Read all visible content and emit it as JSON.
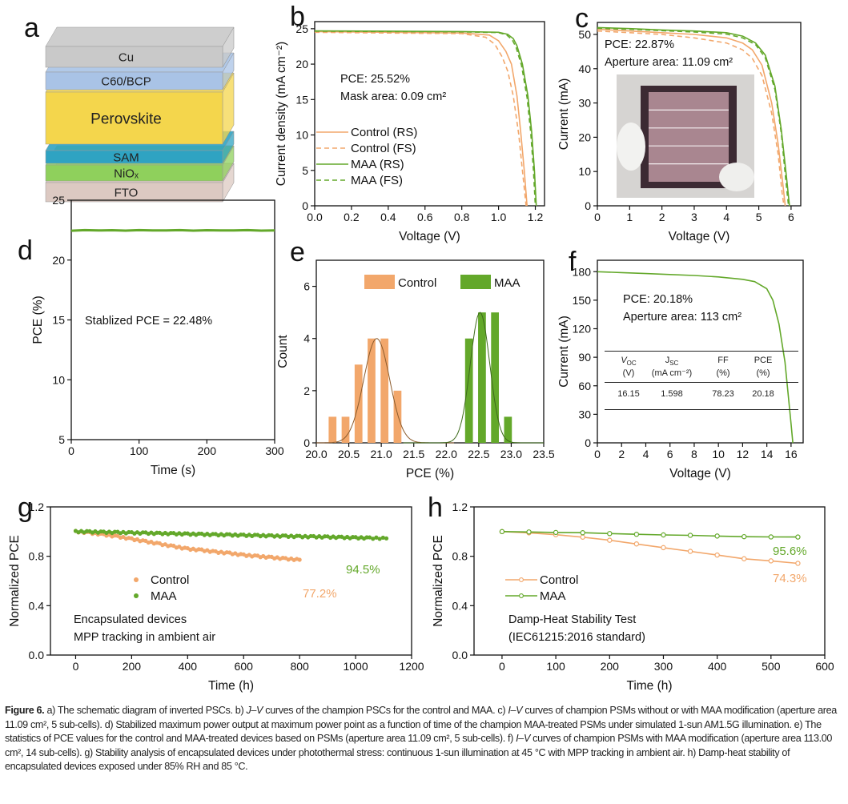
{
  "colors": {
    "control": "#f2a76b",
    "maa": "#63a82a",
    "control_fit": "#8b5a2b",
    "maa_fit": "#3d6a1b",
    "axis": "#111111"
  },
  "panel_labels": [
    "a",
    "b",
    "c",
    "d",
    "e",
    "f",
    "g",
    "h"
  ],
  "schematic": {
    "layers": [
      {
        "label": "FTO",
        "color": "#dcc9c2"
      },
      {
        "label": "NiOₓ",
        "color": "#8fd05c"
      },
      {
        "label": "SAM",
        "color": "#2fa3c2"
      },
      {
        "label": "Perovskite",
        "color": "#f4d64c"
      },
      {
        "label": "C60/BCP",
        "color": "#a9c3e6"
      },
      {
        "label": "Cu",
        "color": "#c9c9c9"
      }
    ]
  },
  "chart_data": [
    {
      "panel": "b",
      "type": "line",
      "xlim": [
        0,
        1.25
      ],
      "ylim": [
        0,
        26
      ],
      "xticks": [
        0,
        0.2,
        0.4,
        0.6,
        0.8,
        1.0,
        1.2
      ],
      "xtick_labels": [
        "0.0",
        "0.2",
        "0.4",
        "0.6",
        "0.8",
        "1.0",
        "1.2"
      ],
      "yticks": [
        0,
        5,
        10,
        15,
        20,
        25
      ],
      "ytick_labels": [
        "0",
        "5",
        "10",
        "15",
        "20",
        "25"
      ],
      "xlabel": "Voltage (V)",
      "ylabel": "Current density (mA cm⁻²)",
      "annotations": [
        "PCE: 25.52%",
        "Mask area: 0.09 cm²"
      ],
      "legend": "center-left",
      "series": [
        {
          "name": "Control (RS)",
          "color": "control",
          "dash": false,
          "x": [
            0,
            0.4,
            0.8,
            0.95,
            1.0,
            1.04,
            1.07,
            1.1,
            1.12,
            1.14,
            1.155
          ],
          "y": [
            24.6,
            24.5,
            24.4,
            24.1,
            23.3,
            21.8,
            20,
            15.5,
            10.5,
            5,
            0
          ]
        },
        {
          "name": "Control (FS)",
          "color": "control",
          "dash": true,
          "x": [
            0,
            0.4,
            0.8,
            0.93,
            0.98,
            1.02,
            1.05,
            1.08,
            1.11,
            1.13,
            1.15
          ],
          "y": [
            24.5,
            24.4,
            24.3,
            23.8,
            22.8,
            21,
            19,
            15.5,
            10,
            5,
            0
          ]
        },
        {
          "name": "MAA (RS)",
          "color": "maa",
          "dash": false,
          "x": [
            0,
            0.4,
            0.8,
            1.0,
            1.05,
            1.08,
            1.1,
            1.13,
            1.16,
            1.18,
            1.195,
            1.205
          ],
          "y": [
            24.7,
            24.65,
            24.6,
            24.5,
            24.2,
            23.6,
            22.6,
            20,
            15.5,
            10.5,
            5,
            0
          ]
        },
        {
          "name": "MAA (FS)",
          "color": "maa",
          "dash": true,
          "x": [
            0,
            0.4,
            0.8,
            1.0,
            1.045,
            1.075,
            1.095,
            1.125,
            1.155,
            1.175,
            1.19,
            1.2
          ],
          "y": [
            24.65,
            24.6,
            24.55,
            24.45,
            24.1,
            23.4,
            22.4,
            19.8,
            15.3,
            10.3,
            5,
            0
          ]
        }
      ]
    },
    {
      "panel": "c",
      "type": "line",
      "xlim": [
        0,
        6.3
      ],
      "ylim": [
        0,
        53.5
      ],
      "xticks": [
        0,
        1,
        2,
        3,
        4,
        5,
        6
      ],
      "xtick_labels": [
        "0",
        "1",
        "2",
        "3",
        "4",
        "5",
        "6"
      ],
      "yticks": [
        0,
        10,
        20,
        30,
        40,
        50
      ],
      "ytick_labels": [
        "0",
        "10",
        "20",
        "30",
        "40",
        "50"
      ],
      "xlabel": "Voltage (V)",
      "ylabel": "Current (mA)",
      "annotations": [
        "PCE: 22.87%",
        "Aperture area: 11.09 cm²"
      ],
      "series": [
        {
          "color": "control",
          "dash": false,
          "x": [
            0,
            1,
            2,
            3,
            4,
            4.5,
            4.8,
            5.1,
            5.4,
            5.6,
            5.75,
            5.82
          ],
          "y": [
            51.5,
            51,
            50.5,
            50,
            49,
            47.5,
            45.5,
            41,
            30,
            18,
            6,
            0
          ]
        },
        {
          "color": "control",
          "dash": true,
          "x": [
            0,
            1,
            2,
            3,
            4,
            4.5,
            4.8,
            5.1,
            5.4,
            5.6,
            5.72,
            5.78
          ],
          "y": [
            51,
            50.5,
            50,
            49,
            47.5,
            45.5,
            43,
            38,
            27,
            15,
            4,
            0
          ]
        },
        {
          "color": "maa",
          "dash": false,
          "x": [
            0,
            1,
            2,
            3,
            4,
            4.5,
            4.9,
            5.2,
            5.5,
            5.7,
            5.85,
            5.95
          ],
          "y": [
            52,
            51.7,
            51.3,
            51,
            50.5,
            49.5,
            47.5,
            44,
            35,
            22,
            9,
            0
          ]
        },
        {
          "color": "maa",
          "dash": true,
          "x": [
            0,
            1,
            2,
            3,
            4,
            4.5,
            4.9,
            5.2,
            5.5,
            5.7,
            5.83,
            5.92
          ],
          "y": [
            51.8,
            51.5,
            51.1,
            50.7,
            50.1,
            49,
            47,
            43.2,
            34,
            21,
            8,
            0
          ]
        }
      ]
    },
    {
      "panel": "d",
      "type": "line",
      "xlim": [
        0,
        300
      ],
      "ylim": [
        5,
        25
      ],
      "xticks": [
        0,
        100,
        200,
        300
      ],
      "xtick_labels": [
        "0",
        "100",
        "200",
        "300"
      ],
      "yticks": [
        5,
        10,
        15,
        20,
        25
      ],
      "ytick_labels": [
        "5",
        "10",
        "15",
        "20",
        "25"
      ],
      "xlabel": "Time (s)",
      "ylabel": "PCE (%)",
      "annotations": [
        "Stablized PCE = 22.48%"
      ],
      "series": [
        {
          "color": "maa",
          "dash": false,
          "markers": true,
          "x": [
            0,
            20,
            40,
            60,
            80,
            100,
            120,
            140,
            160,
            180,
            200,
            220,
            240,
            260,
            280,
            300
          ],
          "y": [
            22.45,
            22.5,
            22.47,
            22.49,
            22.46,
            22.5,
            22.48,
            22.47,
            22.5,
            22.46,
            22.49,
            22.48,
            22.47,
            22.5,
            22.46,
            22.48
          ]
        }
      ]
    },
    {
      "panel": "e",
      "type": "bar",
      "xlim": [
        20,
        23.5
      ],
      "ylim": [
        0,
        7
      ],
      "xticks": [
        20,
        20.5,
        21,
        21.5,
        22,
        22.5,
        23,
        23.5
      ],
      "xtick_labels": [
        "20.0",
        "20.5",
        "21.0",
        "21.5",
        "22.0",
        "22.5",
        "23.0",
        "23.5"
      ],
      "yticks": [
        0,
        2,
        4,
        6
      ],
      "ytick_labels": [
        "0",
        "2",
        "4",
        "6"
      ],
      "xlabel": "PCE (%)",
      "ylabel": "Count",
      "legend": "top",
      "bin_width": 0.12,
      "series": [
        {
          "name": "Control",
          "color": "control",
          "fit_color": "control_fit",
          "x": [
            20.25,
            20.45,
            20.65,
            20.85,
            21.05,
            21.25
          ],
          "y": [
            1,
            1,
            3,
            4,
            4,
            2
          ],
          "fit": {
            "mean": 20.93,
            "sigma": 0.2,
            "peak": 4
          }
        },
        {
          "name": "MAA",
          "color": "maa",
          "fit_color": "maa_fit",
          "x": [
            22.35,
            22.55,
            22.75,
            22.95
          ],
          "y": [
            4,
            5,
            5,
            1
          ],
          "fit": {
            "mean": 22.52,
            "sigma": 0.15,
            "peak": 5
          }
        }
      ]
    },
    {
      "panel": "f",
      "type": "line",
      "xlim": [
        0,
        17
      ],
      "ylim": [
        0,
        192
      ],
      "xticks": [
        0,
        2,
        4,
        6,
        8,
        10,
        12,
        14,
        16
      ],
      "xtick_labels": [
        "0",
        "2",
        "4",
        "6",
        "8",
        "10",
        "12",
        "14",
        "16"
      ],
      "yticks": [
        0,
        30,
        60,
        90,
        120,
        150,
        180
      ],
      "ytick_labels": [
        "0",
        "30",
        "60",
        "90",
        "120",
        "150",
        "180"
      ],
      "xlabel": "Voltage (V)",
      "ylabel": "Current (mA)",
      "annotations": [
        "PCE: 20.18%",
        "Aperture area: 113 cm²"
      ],
      "series": [
        {
          "color": "maa",
          "dash": false,
          "x": [
            0,
            2,
            4,
            6,
            8,
            10,
            12,
            13,
            14,
            14.5,
            15,
            15.5,
            16,
            16.15
          ],
          "y": [
            180,
            179,
            178,
            177,
            176,
            174.5,
            172,
            169.5,
            162,
            150,
            125,
            85,
            20,
            0
          ]
        }
      ],
      "table": {
        "headers": [
          {
            "main": "V",
            "sub": "OC",
            "unit": "(V)"
          },
          {
            "main": "J",
            "sub": "SC",
            "unit": "(mA cm⁻²)"
          },
          {
            "main": "FF",
            "sub": "",
            "unit": "(%)"
          },
          {
            "main": "PCE",
            "sub": "",
            "unit": "(%)"
          }
        ],
        "row": [
          "16.15",
          "1.598",
          "78.23",
          "20.18"
        ]
      }
    },
    {
      "panel": "g",
      "type": "scatter",
      "xlim": [
        -90,
        1200
      ],
      "ylim": [
        0,
        1.2
      ],
      "xticks": [
        0,
        200,
        400,
        600,
        800,
        1000,
        1200
      ],
      "xtick_labels": [
        "0",
        "200",
        "400",
        "600",
        "800",
        "1000",
        "1200"
      ],
      "yticks": [
        0,
        0.4,
        0.8,
        1.2
      ],
      "ytick_labels": [
        "0.0",
        "0.4",
        "0.8",
        "1.2"
      ],
      "xlabel": "Time (h)",
      "ylabel": "Normalized PCE",
      "annotations": [
        "Encapsulated devices",
        "MPP tracking in ambient air"
      ],
      "end_labels": [
        "77.2%",
        "94.5%"
      ],
      "legend": "center-left",
      "series": [
        {
          "name": "Control",
          "color": "control",
          "x": [
            0,
            50,
            100,
            150,
            200,
            250,
            300,
            350,
            400,
            450,
            500,
            550,
            600,
            650,
            700,
            750,
            800
          ],
          "y": [
            1.0,
            0.99,
            0.975,
            0.96,
            0.94,
            0.92,
            0.9,
            0.88,
            0.86,
            0.85,
            0.835,
            0.825,
            0.81,
            0.8,
            0.79,
            0.78,
            0.772
          ]
        },
        {
          "name": "MAA",
          "color": "maa",
          "x": [
            0,
            50,
            100,
            150,
            200,
            250,
            300,
            350,
            400,
            450,
            500,
            550,
            600,
            650,
            700,
            750,
            800,
            850,
            900,
            950,
            1000,
            1050,
            1110
          ],
          "y": [
            1.0,
            0.998,
            0.995,
            0.993,
            0.99,
            0.988,
            0.985,
            0.983,
            0.98,
            0.978,
            0.975,
            0.973,
            0.97,
            0.968,
            0.965,
            0.963,
            0.96,
            0.958,
            0.956,
            0.953,
            0.95,
            0.948,
            0.945
          ]
        }
      ]
    },
    {
      "panel": "h",
      "type": "line",
      "xlim": [
        -52,
        600
      ],
      "ylim": [
        0,
        1.2
      ],
      "xticks": [
        0,
        100,
        200,
        300,
        400,
        500,
        600
      ],
      "xtick_labels": [
        "0",
        "100",
        "200",
        "300",
        "400",
        "500",
        "600"
      ],
      "yticks": [
        0,
        0.4,
        0.8,
        1.2
      ],
      "ytick_labels": [
        "0.0",
        "0.4",
        "0.8",
        "1.2"
      ],
      "xlabel": "Time (h)",
      "ylabel": "Normalized PCE",
      "annotations": [
        "Damp-Heat Stability Test",
        "(IEC61215:2016 standard)"
      ],
      "end_labels": [
        "74.3%",
        "95.6%"
      ],
      "legend": "center-left",
      "series": [
        {
          "name": "Control",
          "color": "control",
          "dash": false,
          "markers": true,
          "x": [
            0,
            50,
            100,
            150,
            200,
            250,
            300,
            350,
            400,
            450,
            500,
            550
          ],
          "y": [
            1.0,
            0.99,
            0.975,
            0.955,
            0.93,
            0.9,
            0.87,
            0.84,
            0.81,
            0.78,
            0.763,
            0.743
          ]
        },
        {
          "name": "MAA",
          "color": "maa",
          "dash": false,
          "markers": true,
          "x": [
            0,
            50,
            100,
            150,
            200,
            250,
            300,
            350,
            400,
            450,
            500,
            550
          ],
          "y": [
            1.0,
            0.997,
            0.993,
            0.991,
            0.984,
            0.978,
            0.973,
            0.97,
            0.964,
            0.959,
            0.957,
            0.956
          ]
        }
      ]
    }
  ],
  "caption": [
    {
      "t": "Figure 6.",
      "b": true
    },
    {
      "t": "  a) The schematic diagram of inverted PSCs. b) "
    },
    {
      "t": "J–V",
      "i": true
    },
    {
      "t": " curves of the champion PSCs for the control and MAA. c) "
    },
    {
      "t": "I–V",
      "i": true
    },
    {
      "t": " curves of champion PSMs without or with MAA modification (aperture area 11.09 cm², 5 sub-cells). d) Stabilized maximum power output at maximum power point as a function of time of the champion MAA-treated PSMs under simulated 1-sun AM1.5G illumination. e) The statistics of PCE values for the control and MAA-treated devices based on PSMs (aperture area 11.09 cm², 5 sub-cells). f) "
    },
    {
      "t": "I–V",
      "i": true
    },
    {
      "t": " curves of champion PSMs with MAA modification (aperture area 113.00 cm², 14 sub-cells). g) Stability analysis of encapsulated devices under photothermal stress: continuous 1-sun illumination at 45 °C with MPP tracking in ambient air. h) Damp-heat stability of encapsulated devices exposed under 85% RH and 85 °C."
    }
  ]
}
